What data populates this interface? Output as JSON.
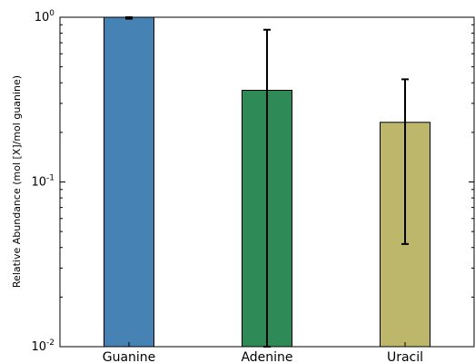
{
  "chart_data": {
    "type": "bar",
    "title": "",
    "xlabel": "",
    "ylabel": "Relative Abundance (mol [X]/mol guanine)",
    "yscale": "log",
    "ylim": [
      0.01,
      1
    ],
    "grid": false,
    "categories": [
      "Guanine",
      "Adenine",
      "Uracil"
    ],
    "values": [
      1.0,
      0.36,
      0.23
    ],
    "errors": [
      {
        "low": 0.98,
        "high": 1.0
      },
      {
        "low": 0.01,
        "high": 0.84
      },
      {
        "low": 0.042,
        "high": 0.42
      }
    ],
    "colors": [
      "#4682b4",
      "#2e8b57",
      "#bdb76b"
    ],
    "y_ticks": [
      {
        "base": "10",
        "exp": "-2",
        "value": 0.01
      },
      {
        "base": "10",
        "exp": "-1",
        "value": 0.1
      },
      {
        "base": "10",
        "exp": "0",
        "value": 1
      }
    ]
  }
}
